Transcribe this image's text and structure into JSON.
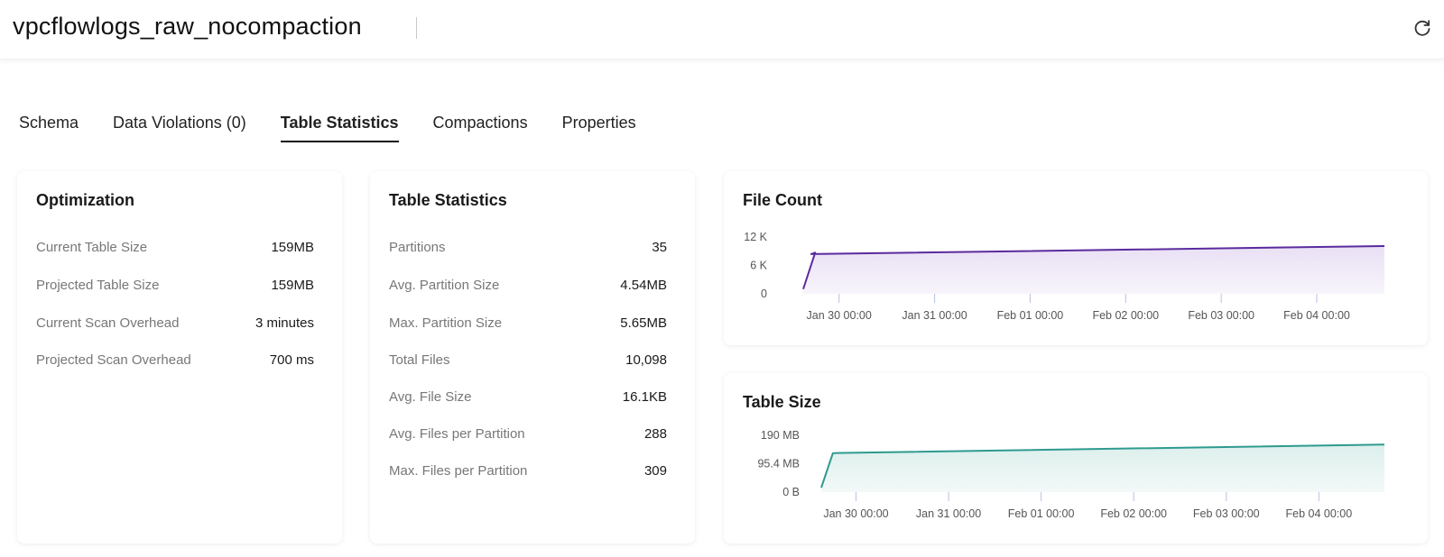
{
  "header": {
    "title": "vpcflowlogs_raw_nocompaction",
    "refresh_icon": "refresh-icon"
  },
  "tabs": [
    {
      "label": "Schema",
      "active": false
    },
    {
      "label": "Data Violations (0)",
      "active": false
    },
    {
      "label": "Table Statistics",
      "active": true
    },
    {
      "label": "Compactions",
      "active": false
    },
    {
      "label": "Properties",
      "active": false
    }
  ],
  "optimization": {
    "title": "Optimization",
    "rows": [
      {
        "label": "Current Table Size",
        "value": "159MB"
      },
      {
        "label": "Projected Table Size",
        "value": "159MB"
      },
      {
        "label": "Current Scan Overhead",
        "value": "3 minutes"
      },
      {
        "label": "Projected Scan Overhead",
        "value": "700 ms"
      }
    ]
  },
  "table_statistics": {
    "title": "Table Statistics",
    "rows": [
      {
        "label": "Partitions",
        "value": "35"
      },
      {
        "label": "Avg. Partition Size",
        "value": "4.54MB"
      },
      {
        "label": "Max. Partition Size",
        "value": "5.65MB"
      },
      {
        "label": "Total Files",
        "value": "10,098"
      },
      {
        "label": "Avg. File Size",
        "value": "16.1KB"
      },
      {
        "label": "Avg. Files per Partition",
        "value": "288"
      },
      {
        "label": "Max. Files per Partition",
        "value": "309"
      }
    ]
  },
  "chart_data": [
    {
      "type": "area",
      "title": "File Count",
      "color": "#5b2a9e",
      "fill": "#e9e0f4",
      "y_tick_labels": [
        "12 K",
        "6 K",
        "0"
      ],
      "y_ticks": [
        12000,
        6000,
        0
      ],
      "ylim": [
        0,
        12000
      ],
      "x_tick_labels": [
        "Jan 30 00:00",
        "Jan 31 00:00",
        "Feb 01 00:00",
        "Feb 02 00:00",
        "Feb 03 00:00",
        "Feb 04 00:00"
      ],
      "x_ticks": [
        0,
        24,
        48,
        72,
        96,
        120
      ],
      "xlim": [
        -9,
        137
      ],
      "x": [
        -9,
        -6,
        -7,
        137
      ],
      "values": [
        1000,
        8700,
        8400,
        10098
      ]
    },
    {
      "type": "area",
      "title": "Table Size",
      "color": "#2e9a8f",
      "fill": "#dcefec",
      "y_tick_labels": [
        "190 MB",
        "95.4 MB",
        "0 B"
      ],
      "y_ticks": [
        190,
        95.4,
        0
      ],
      "ylim": [
        0,
        190
      ],
      "x_tick_labels": [
        "Jan 30 00:00",
        "Jan 31 00:00",
        "Feb 01 00:00",
        "Feb 02 00:00",
        "Feb 03 00:00",
        "Feb 04 00:00"
      ],
      "x_ticks": [
        0,
        24,
        48,
        72,
        96,
        120
      ],
      "xlim": [
        -9,
        137
      ],
      "x": [
        -9,
        -6,
        -5,
        137
      ],
      "values": [
        15,
        130,
        131,
        159
      ]
    }
  ]
}
